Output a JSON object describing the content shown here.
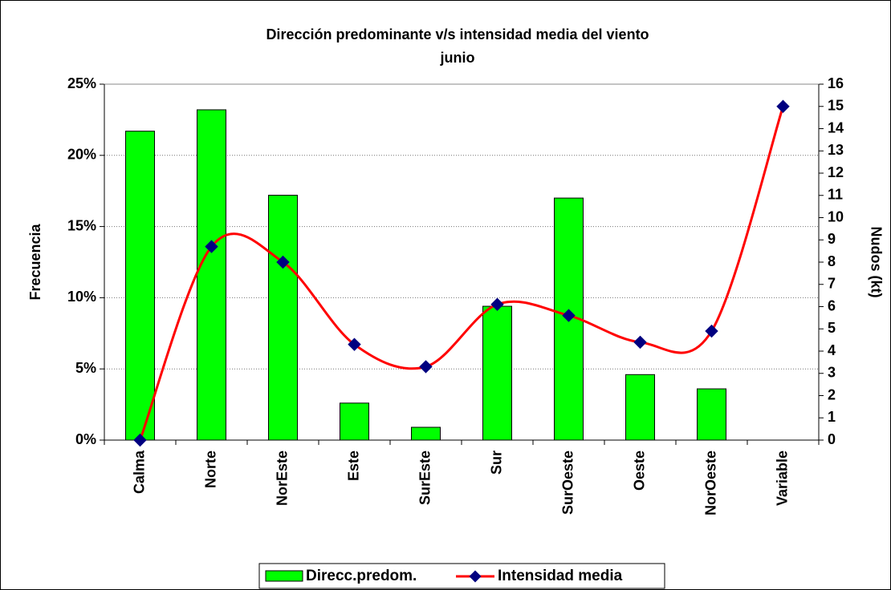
{
  "chart_data": {
    "type": "bar_line",
    "title": "Dirección predominante v/s intensidad media del viento",
    "subtitle": "junio",
    "categories": [
      "Calma",
      "Norte",
      "NorEste",
      "Este",
      "SurEste",
      "Sur",
      "SurOeste",
      "Oeste",
      "NorOeste",
      "Variable"
    ],
    "series": [
      {
        "name": "Direcc.predom.",
        "type": "bar",
        "color": "#00ff00",
        "values": [
          21.7,
          23.2,
          17.2,
          2.6,
          0.9,
          9.4,
          17.0,
          4.6,
          3.6,
          0
        ]
      },
      {
        "name": "Intensidad media",
        "type": "line",
        "axis": "y2",
        "color": "#ff0000",
        "marker_color": "#000080",
        "values": [
          0,
          8.7,
          8.0,
          4.3,
          3.3,
          6.1,
          5.6,
          4.4,
          4.9,
          15
        ]
      }
    ],
    "ylabel": "Frecuencia",
    "y2label": "Nudos (kt)",
    "ylim": [
      0,
      25
    ],
    "yticks": [
      {
        "value": 0,
        "label": "0%"
      },
      {
        "value": 5,
        "label": "5%"
      },
      {
        "value": 10,
        "label": "10%"
      },
      {
        "value": 15,
        "label": "15%"
      },
      {
        "value": 20,
        "label": "20%"
      },
      {
        "value": 25,
        "label": "25%"
      }
    ],
    "y2lim": [
      0,
      16
    ],
    "y2ticks": [
      0,
      1,
      2,
      3,
      4,
      5,
      6,
      7,
      8,
      9,
      10,
      11,
      12,
      13,
      14,
      15,
      16
    ],
    "grid": true,
    "legend": "bottom"
  }
}
